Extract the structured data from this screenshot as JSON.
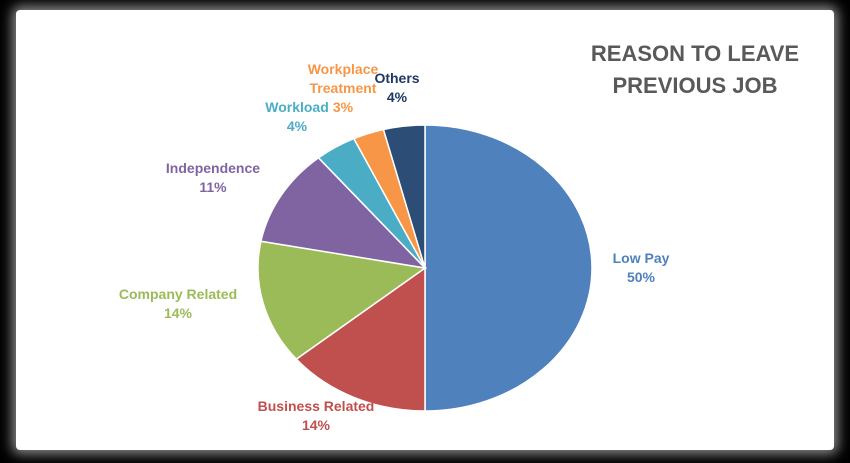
{
  "chart_data": {
    "type": "pie",
    "title": "REASON TO LEAVE PREVIOUS JOB",
    "categories": [
      "Low Pay",
      "Business Related",
      "Company Related",
      "Independence",
      "Workload",
      "Workplace Treatment",
      "Others"
    ],
    "values": [
      50,
      14,
      14,
      11,
      4,
      3,
      4
    ],
    "value_labels": [
      "50%",
      "14%",
      "14%",
      "11%",
      "4%",
      "3%",
      "4%"
    ],
    "colors": [
      "#4f81bd",
      "#c0504d",
      "#9bbb59",
      "#8064a2",
      "#4bacc6",
      "#f79646",
      "#2c4d75"
    ]
  }
}
